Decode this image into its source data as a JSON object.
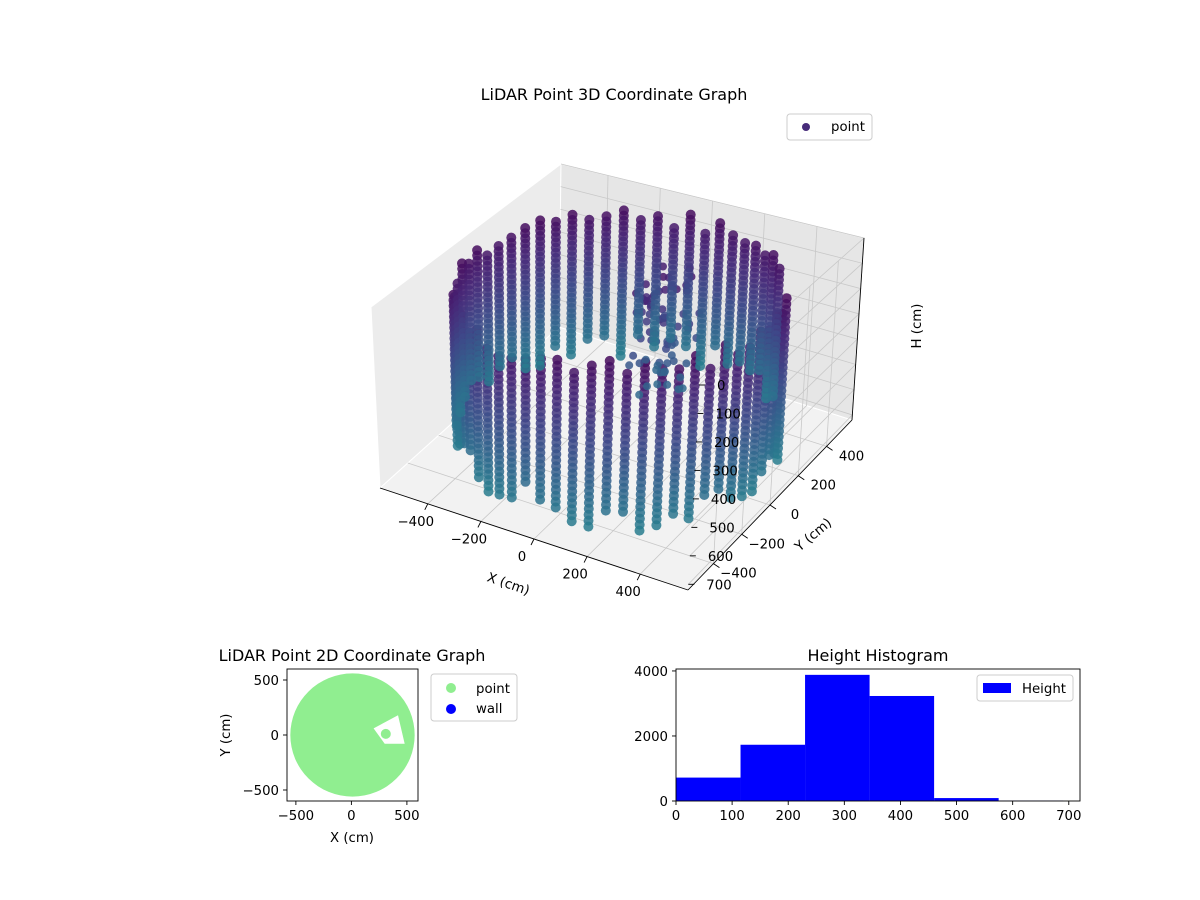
{
  "chart_data": [
    {
      "type": "scatter3d",
      "title": "LiDAR Point 3D Coordinate Graph",
      "xlabel": "X (cm)",
      "ylabel": "Y (cm)",
      "zlabel": "H (cm)",
      "legend": {
        "placement": "top-right",
        "entries": [
          "point"
        ]
      },
      "xlim": [
        -580,
        580
      ],
      "ylim": [
        -580,
        580
      ],
      "zlim": [
        720,
        0
      ],
      "xticks": [
        -400,
        -200,
        0,
        200,
        400
      ],
      "yticks": [
        -400,
        -200,
        0,
        200,
        400
      ],
      "zticks": [
        0,
        100,
        200,
        300,
        400,
        500,
        600,
        700
      ],
      "xtick_labels": [
        "−400",
        "−200",
        "0",
        "200",
        "400"
      ],
      "ytick_labels": [
        "−400",
        "−200",
        "0",
        "200",
        "400"
      ],
      "ztick_labels": [
        "0",
        "100",
        "200",
        "300",
        "400",
        "500",
        "600",
        "700"
      ],
      "grid": true,
      "colormap": [
        "#440154",
        "#482777",
        "#3e4989",
        "#31688e",
        "#26828e"
      ],
      "series": [
        {
          "name": "point",
          "shape": "cylindrical wall",
          "radius_cm": 540,
          "height_range_cm": [
            0,
            700
          ],
          "color": "#472c7a"
        }
      ]
    },
    {
      "type": "scatter",
      "title": "LiDAR Point 2D Coordinate Graph",
      "xlabel": "X (cm)",
      "ylabel": "Y (cm)",
      "xlim": [
        -580,
        600
      ],
      "ylim": [
        -600,
        600
      ],
      "xticks": [
        -500,
        0,
        500
      ],
      "yticks": [
        -500,
        0,
        500
      ],
      "xtick_labels": [
        "−500",
        "0",
        "500"
      ],
      "ytick_labels": [
        "−500",
        "0",
        "500"
      ],
      "legend": {
        "placement": "outside-right",
        "entries": [
          "point",
          "wall"
        ]
      },
      "series": [
        {
          "name": "point",
          "color": "#90ee90",
          "shape": "filled disc",
          "radius_cm": 560,
          "center": [
            10,
            0
          ]
        },
        {
          "name": "wall",
          "color": "#0000ff",
          "points": []
        }
      ]
    },
    {
      "type": "bar",
      "title": "Height Histogram",
      "xlabel": "",
      "ylabel": "",
      "legend": {
        "placement": "top-right",
        "entries": [
          "Height"
        ]
      },
      "bin_edges": [
        0,
        115,
        230,
        345,
        460,
        575,
        690
      ],
      "values": [
        720,
        1730,
        3880,
        3230,
        90,
        10
      ],
      "xlim": [
        0,
        720
      ],
      "ylim": [
        0,
        4060
      ],
      "xticks": [
        0,
        100,
        200,
        300,
        400,
        500,
        600,
        700
      ],
      "yticks": [
        0,
        2000,
        4000
      ],
      "xtick_labels": [
        "0",
        "100",
        "200",
        "300",
        "400",
        "500",
        "600",
        "700"
      ],
      "ytick_labels": [
        "0",
        "2000",
        "4000"
      ],
      "series": [
        {
          "name": "Height",
          "color": "#0000ff"
        }
      ]
    }
  ]
}
